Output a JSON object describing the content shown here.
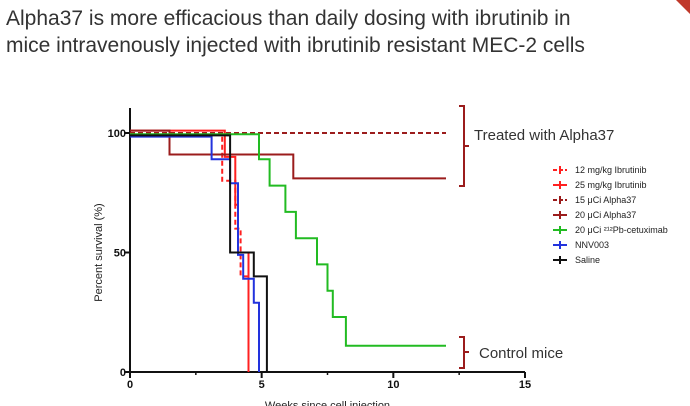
{
  "slide": {
    "title_line1": "Alpha37 is more efficacious than daily dosing with ibrutinib in",
    "title_line2": "mice intravenously injected with ibrutinib resistant MEC-2 cells"
  },
  "chart_data": {
    "type": "line",
    "step": true,
    "title": "",
    "xlabel": "Weeks since cell injection",
    "ylabel": "Percent survival (%)",
    "xlim": [
      0,
      15
    ],
    "ylim": [
      0,
      100
    ],
    "xticks": [
      0,
      5,
      10,
      15
    ],
    "yticks": [
      0,
      50,
      100
    ],
    "grid": false,
    "legend": "right",
    "series": [
      {
        "name": "12 mg/kg Ibrutinib",
        "color": "#ff2020",
        "dashed": true,
        "x": [
          0,
          3.5,
          3.5,
          4.0,
          4.0,
          4.2,
          4.2,
          4.5,
          4.5
        ],
        "y": [
          100,
          100,
          80,
          80,
          60,
          60,
          40,
          40,
          0
        ]
      },
      {
        "name": "25 mg/kg Ibrutinib",
        "color": "#ff2020",
        "dashed": false,
        "x": [
          0,
          3.6,
          3.6,
          4.0,
          4.0,
          4.1,
          4.1,
          4.5,
          4.5
        ],
        "y": [
          101,
          101,
          90,
          90,
          70,
          70,
          50,
          50,
          0
        ]
      },
      {
        "name": "15 μCi Alpha37",
        "color": "#9b1c1c",
        "dashed": true,
        "x": [
          0,
          12.0
        ],
        "y": [
          100,
          100
        ]
      },
      {
        "name": "20 μCi Alpha37",
        "color": "#9b1c1c",
        "dashed": false,
        "x": [
          0,
          1.5,
          1.5,
          6.2,
          6.2,
          12.0
        ],
        "y": [
          101,
          101,
          91,
          91,
          81,
          81
        ]
      },
      {
        "name": "20 μCi ²¹²Pb-cetuximab",
        "color": "#22bb22",
        "dashed": false,
        "x": [
          0,
          4.9,
          4.9,
          5.3,
          5.3,
          5.9,
          5.9,
          6.3,
          6.3,
          7.1,
          7.1,
          7.5,
          7.5,
          7.7,
          7.7,
          8.2,
          8.2,
          12.0
        ],
        "y": [
          99.5,
          99.5,
          89,
          89,
          78,
          78,
          67,
          67,
          56,
          56,
          45,
          45,
          34,
          34,
          23,
          23,
          11,
          11
        ]
      },
      {
        "name": "NNV003",
        "color": "#2233dd",
        "dashed": false,
        "x": [
          0,
          3.1,
          3.1,
          3.8,
          3.8,
          4.1,
          4.1,
          4.3,
          4.3,
          4.7,
          4.7,
          4.9,
          4.9
        ],
        "y": [
          98.5,
          98.5,
          89,
          89,
          79,
          79,
          49,
          49,
          39,
          39,
          29,
          29,
          0
        ]
      },
      {
        "name": "Saline",
        "color": "#111111",
        "dashed": false,
        "x": [
          0,
          3.8,
          3.8,
          4.7,
          4.7,
          5.2,
          5.2
        ],
        "y": [
          99,
          99,
          50,
          50,
          40,
          40,
          0
        ]
      }
    ],
    "annotations": {
      "treated": "Treated with Alpha37",
      "control": "Control mice"
    }
  }
}
